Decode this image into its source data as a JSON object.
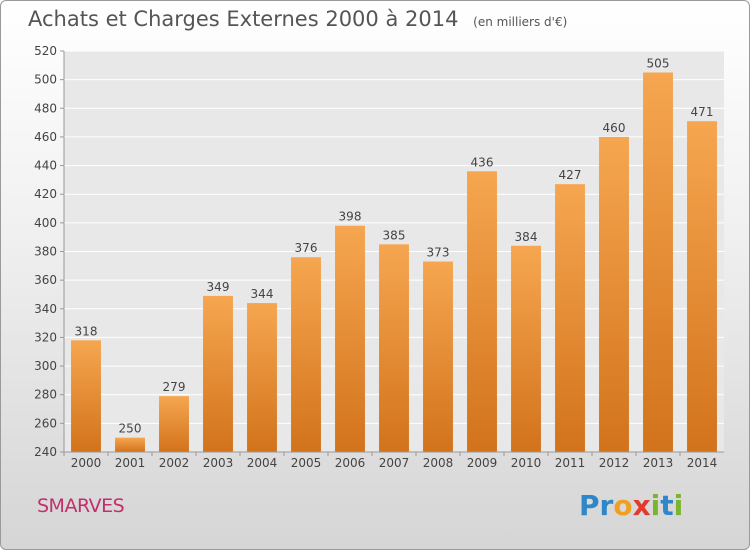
{
  "header": {
    "title": "Achats et Charges Externes 2000 à 2014",
    "unit": "(en milliers d'€)"
  },
  "footer": {
    "town": "SMARVES",
    "logo_letters": [
      {
        "ch": "P",
        "color": "#2f86c8"
      },
      {
        "ch": "r",
        "color": "#2f86c8"
      },
      {
        "ch": "o",
        "color": "#f0a020"
      },
      {
        "ch": "x",
        "color": "#e23b2e"
      },
      {
        "ch": "i",
        "color": "#7ab52f"
      },
      {
        "ch": "t",
        "color": "#2f86c8"
      },
      {
        "ch": "i",
        "color": "#7ab52f"
      }
    ]
  },
  "chart_data": {
    "type": "bar",
    "title": "Achats et Charges Externes 2000 à 2014",
    "subtitle": "(en milliers d'€)",
    "categories": [
      "2000",
      "2001",
      "2002",
      "2003",
      "2004",
      "2005",
      "2006",
      "2007",
      "2008",
      "2009",
      "2010",
      "2011",
      "2012",
      "2013",
      "2014"
    ],
    "values": [
      318,
      250,
      279,
      349,
      344,
      376,
      398,
      385,
      373,
      436,
      384,
      427,
      460,
      505,
      471
    ],
    "ylim": [
      240,
      520
    ],
    "yticks": [
      240,
      260,
      280,
      300,
      320,
      340,
      360,
      380,
      400,
      420,
      440,
      460,
      480,
      500,
      520
    ],
    "grid": true,
    "bar_color_top": "#f6a650",
    "bar_color_bottom": "#d2731c",
    "grid_color": "#ffffff"
  }
}
